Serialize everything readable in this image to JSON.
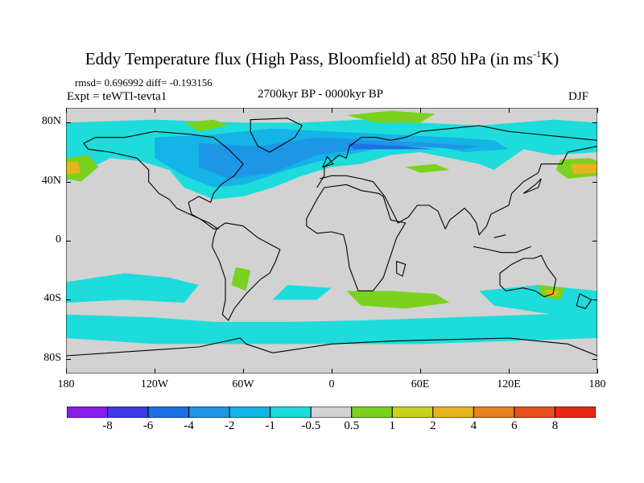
{
  "title_main": "Eddy Temperature flux (High Pass, Bloomfield) at 850 hPa (in ms",
  "title_sup": "-1",
  "title_end": "K)",
  "stats": "rmsd= 0.696992 diff= -0.193156",
  "expt": "Expt = teWTl-tevta1",
  "period": "2700kyr BP - 0000kyr BP",
  "season": "DJF",
  "lat_labels": [
    "80N",
    "40N",
    "0",
    "40S",
    "80S"
  ],
  "lat_values": [
    80,
    40,
    0,
    -40,
    -80
  ],
  "lon_labels": [
    "180",
    "120W",
    "60W",
    "0",
    "60E",
    "120E",
    "180"
  ],
  "lon_values": [
    -180,
    -120,
    -60,
    0,
    60,
    120,
    180
  ],
  "colorbar": {
    "labels": [
      "-8",
      "-6",
      "-4",
      "-2",
      "-1",
      "-0.5",
      "0.5",
      "1",
      "2",
      "4",
      "6",
      "8"
    ],
    "colors": [
      "#8a1ee6",
      "#3c3ce6",
      "#1e6ee6",
      "#1e96e6",
      "#14b4e6",
      "#1edcdc",
      "#d2d2d2",
      "#7ad21e",
      "#c8d21e",
      "#e6b41e",
      "#e6821e",
      "#e6501e",
      "#e62814"
    ]
  },
  "colors": {
    "neutral": "#d2d2d2",
    "lightblue": "#1edcdc",
    "blue1": "#14b4e6",
    "blue2": "#1e96e6",
    "blue3": "#1e6ee6",
    "green": "#7ad21e",
    "yellow": "#c8d21e",
    "orange": "#e6b41e"
  }
}
